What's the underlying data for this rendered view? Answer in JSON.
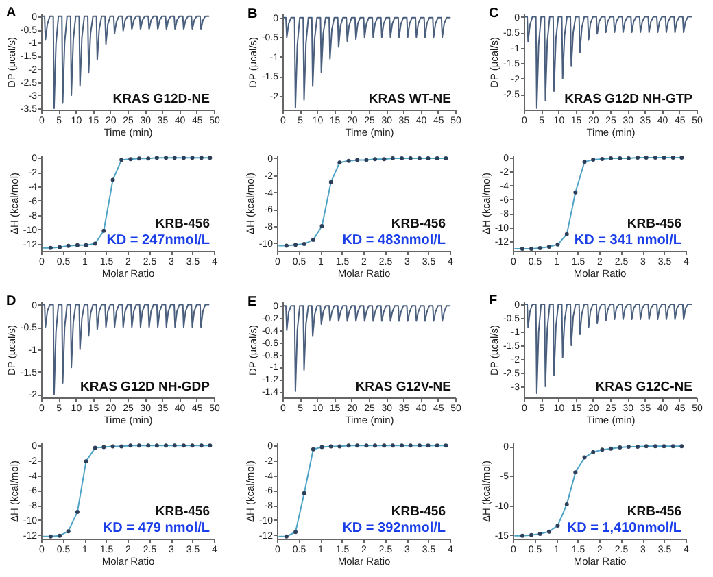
{
  "chart_data": [
    {
      "type": "line",
      "title": "A",
      "xlabel": "Time (min)",
      "ylabel": "DP (µcal/s)",
      "annotations": [
        "KRAS G12D-NE"
      ],
      "x": [
        0.4,
        1,
        1.25,
        1.8,
        2.5,
        3.5,
        3.75,
        4.3,
        5,
        6,
        6.25,
        6.8,
        7.5,
        8.5,
        8.75,
        9.3,
        10,
        11,
        11.25,
        11.8,
        12.5,
        13.5,
        13.75,
        14.3,
        15,
        16,
        16.25,
        16.8,
        17.5,
        18.5,
        18.75,
        19.3,
        20,
        21,
        21.25,
        21.8,
        22.5,
        23.5,
        23.75,
        24.3,
        25,
        26,
        26.25,
        26.8,
        27.5,
        28.5,
        28.75,
        29.3,
        30,
        31,
        31.25,
        31.8,
        32.5,
        33.5,
        33.75,
        34.3,
        35,
        36,
        36.25,
        36.8,
        37.5,
        38.5,
        38.75,
        39.3,
        40,
        41,
        41.25,
        41.8,
        42.5,
        43.5,
        43.75,
        44.3,
        45,
        46,
        46.25,
        46.8,
        47.5,
        48.5
      ],
      "series": [
        {
          "color": "#4a5f7e",
          "values": [
            0,
            0,
            -0.9,
            -0.3,
            0,
            0,
            -3.5,
            -1.05,
            0,
            0,
            -3.3,
            -1,
            0,
            0,
            -3,
            -0.9,
            0,
            0,
            -2.65,
            -0.8,
            0,
            0,
            -2.15,
            -0.65,
            0,
            0,
            -1.65,
            -0.5,
            0,
            0,
            -1.05,
            -0.3,
            0,
            0,
            -0.65,
            -0.2,
            0,
            0,
            -0.55,
            -0.15,
            0,
            0,
            -0.5,
            -0.15,
            0,
            0,
            -0.5,
            -0.15,
            0,
            0,
            -0.5,
            -0.15,
            0,
            0,
            -0.5,
            -0.15,
            0,
            0,
            -0.5,
            -0.15,
            0,
            0,
            -0.5,
            -0.15,
            0,
            0,
            -0.5,
            -0.15,
            0,
            0,
            -0.5,
            -0.15,
            0,
            0,
            -0.5,
            -0.15,
            0,
            0
          ]
        }
      ],
      "xlim": [
        0,
        50
      ],
      "xticks": [
        0,
        5,
        10,
        15,
        20,
        25,
        30,
        35,
        40,
        45,
        50
      ],
      "ylim": [
        -3.55,
        0.1
      ],
      "yticks": [
        0,
        -0.5,
        -1,
        -1.5,
        -2,
        -2.5,
        -3,
        -3.5
      ]
    },
    {
      "type": "line",
      "title": "B",
      "xlabel": "Time (min)",
      "ylabel": "DP (µcal/s)",
      "annotations": [
        "KRAS WT-NE"
      ],
      "x": [
        0.4,
        1,
        1.25,
        1.8,
        2.5,
        3.5,
        3.75,
        4.3,
        5,
        6,
        6.25,
        6.8,
        7.5,
        8.5,
        8.75,
        9.3,
        10,
        11,
        11.25,
        11.8,
        12.5,
        13.5,
        13.75,
        14.3,
        15,
        16,
        16.25,
        16.8,
        17.5,
        18.5,
        18.75,
        19.3,
        20,
        21,
        21.25,
        21.8,
        22.5,
        23.5,
        23.75,
        24.3,
        25,
        26,
        26.25,
        26.8,
        27.5,
        28.5,
        28.75,
        29.3,
        30,
        31,
        31.25,
        31.8,
        32.5,
        33.5,
        33.75,
        34.3,
        35,
        36,
        36.25,
        36.8,
        37.5,
        38.5,
        38.75,
        39.3,
        40,
        41,
        41.25,
        41.8,
        42.5,
        43.5,
        43.75,
        44.3,
        45,
        46,
        46.25,
        46.8,
        47.5,
        48.5
      ],
      "series": [
        {
          "color": "#4a5f7e",
          "values": [
            0,
            0,
            -0.5,
            -0.15,
            0,
            0,
            -2.3,
            -0.7,
            0,
            0,
            -2.1,
            -0.65,
            0,
            0,
            -1.75,
            -0.55,
            0,
            0,
            -1.4,
            -0.4,
            0,
            0,
            -1.05,
            -0.3,
            0,
            0,
            -0.75,
            -0.2,
            0,
            0,
            -0.6,
            -0.2,
            0,
            0,
            -0.55,
            -0.15,
            0,
            0,
            -0.5,
            -0.15,
            0,
            0,
            -0.5,
            -0.15,
            0,
            0,
            -0.5,
            -0.15,
            0,
            0,
            -0.5,
            -0.15,
            0,
            0,
            -0.5,
            -0.15,
            0,
            0,
            -0.5,
            -0.15,
            0,
            0,
            -0.5,
            -0.15,
            0,
            0,
            -0.5,
            -0.15,
            0,
            0,
            -0.5,
            -0.15,
            0,
            0,
            -0.5,
            -0.15,
            0,
            0
          ]
        }
      ],
      "xlim": [
        0,
        50
      ],
      "xticks": [
        0,
        5,
        10,
        15,
        20,
        25,
        30,
        35,
        40,
        45,
        50
      ],
      "ylim": [
        -2.35,
        0.1
      ],
      "yticks": [
        0,
        -0.5,
        -1,
        -1.5,
        -2
      ]
    },
    {
      "type": "line",
      "title": "C",
      "xlabel": "Time (min)",
      "ylabel": "DP (µcal/s)",
      "annotations": [
        "KRAS G12D NH-GTP"
      ],
      "x": [
        0.4,
        1,
        1.25,
        1.8,
        2.5,
        3.5,
        3.75,
        4.3,
        5,
        6,
        6.25,
        6.8,
        7.5,
        8.5,
        8.75,
        9.3,
        10,
        11,
        11.25,
        11.8,
        12.5,
        13.5,
        13.75,
        14.3,
        15,
        16,
        16.25,
        16.8,
        17.5,
        18.5,
        18.75,
        19.3,
        20,
        21,
        21.25,
        21.8,
        22.5,
        23.5,
        23.75,
        24.3,
        25,
        26,
        26.25,
        26.8,
        27.5,
        28.5,
        28.75,
        29.3,
        30,
        31,
        31.25,
        31.8,
        32.5,
        33.5,
        33.75,
        34.3,
        35,
        36,
        36.25,
        36.8,
        37.5,
        38.5,
        38.75,
        39.3,
        40,
        41,
        41.25,
        41.8,
        42.5,
        43.5,
        43.75,
        44.3,
        45,
        46,
        46.25,
        46.8,
        47.5,
        48.5
      ],
      "series": [
        {
          "color": "#4a5f7e",
          "values": [
            0,
            0,
            -0.8,
            -0.25,
            0,
            0,
            -2.95,
            -0.9,
            0,
            0,
            -2.7,
            -0.8,
            0,
            0,
            -2.4,
            -0.7,
            0,
            0,
            -2,
            -0.6,
            0,
            0,
            -1.6,
            -0.5,
            0,
            0,
            -1.15,
            -0.35,
            0,
            0,
            -0.75,
            -0.2,
            0,
            0,
            -0.55,
            -0.15,
            0,
            0,
            -0.5,
            -0.15,
            0,
            0,
            -0.5,
            -0.15,
            0,
            0,
            -0.5,
            -0.15,
            0,
            0,
            -0.5,
            -0.15,
            0,
            0,
            -0.5,
            -0.15,
            0,
            0,
            -0.5,
            -0.15,
            0,
            0,
            -0.5,
            -0.15,
            0,
            0,
            -0.5,
            -0.15,
            0,
            0,
            -0.5,
            -0.15,
            0,
            0,
            -0.5,
            -0.15,
            0,
            0
          ]
        }
      ],
      "xlim": [
        0,
        50
      ],
      "xticks": [
        0,
        5,
        10,
        15,
        20,
        25,
        30,
        35,
        40,
        45,
        50
      ],
      "ylim": [
        -3,
        0.1
      ],
      "yticks": [
        0,
        -0.5,
        -1,
        -1.5,
        -2,
        -2.5
      ]
    },
    {
      "type": "line",
      "xlabel": "Molar Ratio",
      "ylabel": "ΔH (kcal/mol)",
      "annotations": [
        "KRB-456",
        "KD = 247nmol/L"
      ],
      "series": [
        {
          "color": "#4fa3c7",
          "x": [
            0.05,
            0.22,
            0.43,
            0.63,
            0.84,
            1.04,
            1.25,
            1.45,
            1.66,
            1.86,
            2.07,
            2.27,
            2.48,
            2.68,
            2.89,
            3.09,
            3.3,
            3.5,
            3.71,
            3.91
          ],
          "values": [
            -12.6,
            -12.6,
            -12.5,
            -12.3,
            -12.2,
            -12.2,
            -12,
            -10.2,
            -3.1,
            -0.3,
            -0.2,
            -0.1,
            -0.1,
            0,
            0,
            0,
            0,
            0,
            0,
            0
          ]
        },
        {
          "type": "scatter",
          "color": "#2c3e58",
          "x": [
            0.22,
            0.43,
            0.63,
            0.84,
            1.04,
            1.25,
            1.45,
            1.66,
            1.86,
            2.07,
            2.27,
            2.48,
            2.68,
            2.89,
            3.09,
            3.3,
            3.5,
            3.71,
            3.91
          ],
          "values": [
            -12.6,
            -12.5,
            -12.3,
            -12.2,
            -12.2,
            -12,
            -10.2,
            -3.1,
            -0.3,
            -0.2,
            -0.1,
            -0.1,
            0,
            0,
            0,
            0,
            0,
            0,
            0
          ]
        }
      ],
      "xlim": [
        0,
        4
      ],
      "xticks": [
        0,
        0.5,
        1,
        1.5,
        2,
        2.5,
        3,
        3.5,
        4
      ],
      "ylim": [
        -13,
        0.4
      ],
      "yticks": [
        0,
        -2,
        -4,
        -6,
        -8,
        -10,
        -12
      ]
    },
    {
      "type": "line",
      "xlabel": "Molar Ratio",
      "ylabel": "ΔH (kcal/mol)",
      "annotations": [
        "KRB-456",
        "KD = 483nmol/L"
      ],
      "series": [
        {
          "color": "#4fa3c7",
          "x": [
            0.05,
            0.22,
            0.43,
            0.63,
            0.84,
            1.04,
            1.25,
            1.45,
            1.66,
            1.86,
            2.07,
            2.27,
            2.48,
            2.68,
            2.89,
            3.09,
            3.3,
            3.5,
            3.71,
            3.91
          ],
          "values": [
            -10.3,
            -10.3,
            -10.2,
            -10.1,
            -9.6,
            -8,
            -2.8,
            -0.5,
            -0.3,
            -0.2,
            -0.2,
            -0.1,
            -0.1,
            0,
            0,
            0,
            0,
            0,
            0,
            0
          ]
        },
        {
          "type": "scatter",
          "color": "#2c3e58",
          "x": [
            0.22,
            0.43,
            0.63,
            0.84,
            1.04,
            1.25,
            1.45,
            1.66,
            1.86,
            2.07,
            2.27,
            2.48,
            2.68,
            2.89,
            3.09,
            3.3,
            3.5,
            3.71,
            3.91
          ],
          "values": [
            -10.3,
            -10.2,
            -10.1,
            -9.6,
            -8,
            -2.8,
            -0.5,
            -0.3,
            -0.2,
            -0.2,
            -0.1,
            -0.1,
            0,
            0,
            0,
            0,
            0,
            0,
            0
          ]
        }
      ],
      "xlim": [
        0,
        4
      ],
      "xticks": [
        0,
        0.5,
        1,
        1.5,
        2,
        2.5,
        3,
        3.5,
        4
      ],
      "ylim": [
        -10.9,
        0.4
      ],
      "yticks": [
        0,
        -2,
        -4,
        -6,
        -8,
        -10
      ]
    },
    {
      "type": "line",
      "xlabel": "Molar Ratio",
      "ylabel": "ΔH (kcal/mol)",
      "annotations": [
        "KRB-456",
        "KD = 341 nmol/L"
      ],
      "series": [
        {
          "color": "#4fa3c7",
          "x": [
            0.05,
            0.22,
            0.43,
            0.63,
            0.84,
            1.04,
            1.25,
            1.45,
            1.66,
            1.86,
            2.07,
            2.27,
            2.48,
            2.68,
            2.89,
            3.09,
            3.3,
            3.5,
            3.71,
            3.91
          ],
          "values": [
            -13.1,
            -13.1,
            -13.1,
            -13,
            -12.8,
            -12.5,
            -11,
            -5,
            -0.6,
            -0.3,
            -0.2,
            -0.1,
            -0.1,
            -0.1,
            0,
            0,
            0,
            0,
            0,
            0
          ]
        },
        {
          "type": "scatter",
          "color": "#2c3e58",
          "x": [
            0.22,
            0.43,
            0.63,
            0.84,
            1.04,
            1.25,
            1.45,
            1.66,
            1.86,
            2.07,
            2.27,
            2.48,
            2.68,
            2.89,
            3.09,
            3.3,
            3.5,
            3.71,
            3.91
          ],
          "values": [
            -13.1,
            -13.1,
            -13,
            -12.8,
            -12.5,
            -11,
            -5,
            -0.6,
            -0.3,
            -0.2,
            -0.1,
            -0.1,
            -0.1,
            0,
            0,
            0,
            0,
            0,
            0
          ]
        }
      ],
      "xlim": [
        0,
        4
      ],
      "xticks": [
        0,
        0.5,
        1,
        1.5,
        2,
        2.5,
        3,
        3.5,
        4
      ],
      "ylim": [
        -13.4,
        0.4
      ],
      "yticks": [
        0,
        -2,
        -4,
        -6,
        -8,
        -10,
        -12
      ]
    },
    {
      "type": "line",
      "title": "D",
      "xlabel": "Time (min)",
      "ylabel": "DP (µcal/s)",
      "annotations": [
        "KRAS G12D NH-GDP"
      ],
      "x": [
        0.4,
        1,
        1.25,
        1.8,
        2.5,
        3.5,
        3.75,
        4.3,
        5,
        6,
        6.25,
        6.8,
        7.5,
        8.5,
        8.75,
        9.3,
        10,
        11,
        11.25,
        11.8,
        12.5,
        13.5,
        13.75,
        14.3,
        15,
        16,
        16.25,
        16.8,
        17.5,
        18.5,
        18.75,
        19.3,
        20,
        21,
        21.25,
        21.8,
        22.5,
        23.5,
        23.75,
        24.3,
        25,
        26,
        26.25,
        26.8,
        27.5,
        28.5,
        28.75,
        29.3,
        30,
        31,
        31.25,
        31.8,
        32.5,
        33.5,
        33.75,
        34.3,
        35,
        36,
        36.25,
        36.8,
        37.5,
        38.5,
        38.75,
        39.3,
        40,
        41,
        41.25,
        41.8,
        42.5,
        43.5,
        43.75,
        44.3,
        45,
        46,
        46.25,
        46.8,
        47.5,
        48.5
      ],
      "series": [
        {
          "color": "#4a5f7e",
          "values": [
            0,
            0,
            -0.5,
            -0.15,
            0,
            0,
            -2,
            -0.6,
            0,
            0,
            -1.75,
            -0.5,
            0,
            0,
            -1.4,
            -0.4,
            0,
            0,
            -1,
            -0.3,
            0,
            0,
            -0.7,
            -0.2,
            0,
            0,
            -0.55,
            -0.15,
            0,
            0,
            -0.5,
            -0.15,
            0,
            0,
            -0.5,
            -0.15,
            0,
            0,
            -0.5,
            -0.15,
            0,
            0,
            -0.5,
            -0.15,
            0,
            0,
            -0.5,
            -0.15,
            0,
            0,
            -0.5,
            -0.15,
            0,
            0,
            -0.5,
            -0.15,
            0,
            0,
            -0.5,
            -0.15,
            0,
            0,
            -0.5,
            -0.15,
            0,
            0,
            -0.5,
            -0.15,
            0,
            0,
            -0.5,
            -0.15,
            0,
            0,
            -0.5,
            -0.15,
            0,
            0
          ]
        }
      ],
      "xlim": [
        0,
        50
      ],
      "xticks": [
        0,
        5,
        10,
        15,
        20,
        25,
        30,
        35,
        40,
        45,
        50
      ],
      "ylim": [
        -2.07,
        0.07
      ],
      "yticks": [
        0,
        -0.5,
        -1,
        -1.5,
        -2
      ]
    },
    {
      "type": "line",
      "title": "E",
      "xlabel": "Time (min)",
      "ylabel": "DP (µcal/s)",
      "annotations": [
        "KRAS G12V-NE"
      ],
      "x": [
        0.4,
        1,
        1.25,
        1.8,
        2.5,
        3.5,
        3.75,
        4.3,
        5,
        6,
        6.25,
        6.8,
        7.5,
        8.5,
        8.75,
        9.3,
        10,
        11,
        11.25,
        11.8,
        12.5,
        13.5,
        13.75,
        14.3,
        15,
        16,
        16.25,
        16.8,
        17.5,
        18.5,
        18.75,
        19.3,
        20,
        21,
        21.25,
        21.8,
        22.5,
        23.5,
        23.75,
        24.3,
        25,
        26,
        26.25,
        26.8,
        27.5,
        28.5,
        28.75,
        29.3,
        30,
        31,
        31.25,
        31.8,
        32.5,
        33.5,
        33.75,
        34.3,
        35,
        36,
        36.25,
        36.8,
        37.5,
        38.5,
        38.75,
        39.3,
        40,
        41,
        41.25,
        41.8,
        42.5,
        43.5,
        43.75,
        44.3,
        45,
        46,
        46.25,
        46.8,
        47.5,
        48.5
      ],
      "series": [
        {
          "color": "#4a5f7e",
          "values": [
            0,
            0,
            -0.4,
            -0.1,
            0,
            0,
            -1.4,
            -0.4,
            0,
            0,
            -1.05,
            -0.3,
            0,
            0,
            -0.5,
            -0.15,
            0,
            0,
            -0.3,
            -0.1,
            0,
            0,
            -0.25,
            -0.1,
            0,
            0,
            -0.25,
            -0.1,
            0,
            0,
            -0.25,
            -0.1,
            0,
            0,
            -0.25,
            -0.1,
            0,
            0,
            -0.25,
            -0.1,
            0,
            0,
            -0.25,
            -0.1,
            0,
            0,
            -0.25,
            -0.1,
            0,
            0,
            -0.25,
            -0.1,
            0,
            0,
            -0.25,
            -0.1,
            0,
            0,
            -0.25,
            -0.1,
            0,
            0,
            -0.25,
            -0.1,
            0,
            0,
            -0.25,
            -0.1,
            0,
            0,
            -0.25,
            -0.1,
            0,
            0,
            -0.25,
            -0.1,
            0,
            0
          ]
        }
      ],
      "xlim": [
        0,
        50
      ],
      "xticks": [
        0,
        5,
        10,
        15,
        20,
        25,
        30,
        35,
        40,
        45,
        50
      ],
      "ylim": [
        -1.5,
        0.07
      ],
      "yticks": [
        0,
        -0.2,
        -0.4,
        -0.6,
        -0.8,
        -1,
        -1.2,
        -1.4
      ]
    },
    {
      "type": "line",
      "title": "F",
      "xlabel": "Time (min)",
      "ylabel": "DP (µcal/s)",
      "annotations": [
        "KRAS G12C-NE"
      ],
      "x": [
        0.4,
        1,
        1.25,
        1.8,
        2.5,
        3.5,
        3.75,
        4.3,
        5,
        6,
        6.25,
        6.8,
        7.5,
        8.5,
        8.75,
        9.3,
        10,
        11,
        11.25,
        11.8,
        12.5,
        13.5,
        13.75,
        14.3,
        15,
        16,
        16.25,
        16.8,
        17.5,
        18.5,
        18.75,
        19.3,
        20,
        21,
        21.25,
        21.8,
        22.5,
        23.5,
        23.75,
        24.3,
        25,
        26,
        26.25,
        26.8,
        27.5,
        28.5,
        28.75,
        29.3,
        30,
        31,
        31.25,
        31.8,
        32.5,
        33.5,
        33.75,
        34.3,
        35,
        36,
        36.25,
        36.8,
        37.5,
        38.5,
        38.75,
        39.3,
        40,
        41,
        41.25,
        41.8,
        42.5,
        43.5,
        43.75,
        44.3,
        45,
        46,
        46.25,
        46.8,
        47.5,
        48.5
      ],
      "series": [
        {
          "color": "#4a5f7e",
          "values": [
            0,
            0,
            -0.85,
            -0.25,
            0,
            0,
            -3.25,
            -1,
            0,
            0,
            -3,
            -0.9,
            0,
            0,
            -2.6,
            -0.8,
            0,
            0,
            -1.95,
            -0.6,
            0,
            0,
            -1.5,
            -0.45,
            0,
            0,
            -1.1,
            -0.35,
            0,
            0,
            -0.85,
            -0.25,
            0,
            0,
            -0.7,
            -0.2,
            0,
            0,
            -0.6,
            -0.2,
            0,
            0,
            -0.55,
            -0.15,
            0,
            0,
            -0.55,
            -0.15,
            0,
            0,
            -0.55,
            -0.15,
            0,
            0,
            -0.55,
            -0.15,
            0,
            0,
            -0.55,
            -0.15,
            0,
            0,
            -0.55,
            -0.15,
            0,
            0,
            -0.55,
            -0.15,
            0,
            0,
            -0.55,
            -0.15,
            0,
            0,
            -0.55,
            -0.15,
            0,
            0
          ]
        }
      ],
      "xlim": [
        0,
        50
      ],
      "xticks": [
        0,
        5,
        10,
        15,
        20,
        25,
        30,
        35,
        40,
        45,
        50
      ],
      "ylim": [
        -3.4,
        0.1
      ],
      "yticks": [
        0,
        -0.5,
        -1,
        -1.5,
        -2,
        -2.5,
        -3
      ]
    },
    {
      "type": "line",
      "xlabel": "Molar Ratio",
      "ylabel": "ΔH (kcal/mol)",
      "annotations": [
        "KRB-456",
        "KD = 479 nmol/L"
      ],
      "series": [
        {
          "color": "#4fa3c7",
          "x": [
            0.05,
            0.22,
            0.43,
            0.63,
            0.84,
            1.04,
            1.25,
            1.45,
            1.66,
            1.86,
            2.07,
            2.27,
            2.48,
            2.68,
            2.89,
            3.09,
            3.3,
            3.5,
            3.71,
            3.91
          ],
          "values": [
            -12.2,
            -12.2,
            -12.1,
            -11.5,
            -8.9,
            -2.1,
            -0.3,
            -0.2,
            -0.1,
            -0.1,
            0,
            0,
            0,
            0,
            0,
            0,
            0,
            0,
            0,
            0
          ]
        },
        {
          "type": "scatter",
          "color": "#2c3e58",
          "x": [
            0.22,
            0.43,
            0.63,
            0.84,
            1.04,
            1.25,
            1.45,
            1.66,
            1.86,
            2.07,
            2.27,
            2.48,
            2.68,
            2.89,
            3.09,
            3.3,
            3.5,
            3.71,
            3.91
          ],
          "values": [
            -12.2,
            -12.1,
            -11.5,
            -8.9,
            -2.1,
            -0.3,
            -0.2,
            -0.1,
            -0.1,
            0,
            0,
            0,
            0,
            0,
            0,
            0,
            0,
            0,
            0
          ]
        }
      ],
      "xlim": [
        0,
        4
      ],
      "xticks": [
        0,
        0.5,
        1,
        1.5,
        2,
        2.5,
        3,
        3.5,
        4
      ],
      "ylim": [
        -12.5,
        0.4
      ],
      "yticks": [
        0,
        -2,
        -4,
        -6,
        -8,
        -10,
        -12
      ]
    },
    {
      "type": "line",
      "xlabel": "Molar Ratio",
      "ylabel": "ΔH (kcal/mol)",
      "annotations": [
        "KRB-456",
        "KD = 392nmol/L"
      ],
      "series": [
        {
          "color": "#4fa3c7",
          "x": [
            0.05,
            0.22,
            0.43,
            0.63,
            0.84,
            1.04,
            1.25,
            1.45,
            1.66,
            1.86,
            2.07,
            2.27,
            2.48,
            2.68,
            2.89,
            3.09,
            3.3,
            3.5,
            3.71,
            3.91
          ],
          "values": [
            -12.2,
            -12.2,
            -11.6,
            -6.4,
            -0.5,
            -0.2,
            -0.1,
            -0.1,
            0,
            0,
            0,
            0,
            0,
            0,
            0,
            0,
            0,
            0,
            0,
            0
          ]
        },
        {
          "type": "scatter",
          "color": "#2c3e58",
          "x": [
            0.22,
            0.43,
            0.63,
            0.84,
            1.04,
            1.25,
            1.45,
            1.66,
            1.86,
            2.07,
            2.27,
            2.48,
            2.68,
            2.89,
            3.09,
            3.3,
            3.5,
            3.71,
            3.91
          ],
          "values": [
            -12.2,
            -11.6,
            -6.4,
            -0.5,
            -0.2,
            -0.1,
            -0.1,
            0,
            0,
            0,
            0,
            0,
            0,
            0,
            0,
            0,
            0,
            0,
            0
          ]
        }
      ],
      "xlim": [
        0,
        4
      ],
      "xticks": [
        0,
        0.5,
        1,
        1.5,
        2,
        2.5,
        3,
        3.5,
        4
      ],
      "ylim": [
        -12.5,
        0.4
      ],
      "yticks": [
        0,
        -2,
        -4,
        -6,
        -8,
        -10,
        -12
      ]
    },
    {
      "type": "line",
      "xlabel": "Molar Ratio",
      "ylabel": "ΔH (kcal/mol)",
      "annotations": [
        "KRB-456",
        "KD = 1,410nmol/L"
      ],
      "series": [
        {
          "color": "#4fa3c7",
          "x": [
            0.05,
            0.22,
            0.43,
            0.63,
            0.84,
            1.04,
            1.25,
            1.45,
            1.66,
            1.86,
            2.07,
            2.27,
            2.48,
            2.68,
            2.89,
            3.09,
            3.3,
            3.5,
            3.71,
            3.91
          ],
          "values": [
            -15.1,
            -15.1,
            -15,
            -14.8,
            -14.4,
            -13.4,
            -9.8,
            -4.4,
            -1.9,
            -1,
            -0.6,
            -0.4,
            -0.2,
            -0.1,
            -0.1,
            0,
            0,
            0,
            0,
            0
          ]
        },
        {
          "type": "scatter",
          "color": "#2c3e58",
          "x": [
            0.22,
            0.43,
            0.63,
            0.84,
            1.04,
            1.25,
            1.45,
            1.66,
            1.86,
            2.07,
            2.27,
            2.48,
            2.68,
            2.89,
            3.09,
            3.3,
            3.5,
            3.71,
            3.91
          ],
          "values": [
            -15.1,
            -15,
            -14.8,
            -14.4,
            -13.4,
            -9.8,
            -4.4,
            -1.9,
            -1,
            -0.6,
            -0.4,
            -0.2,
            -0.1,
            -0.1,
            0,
            0,
            0,
            0,
            0
          ]
        }
      ],
      "xlim": [
        0,
        4
      ],
      "xticks": [
        0,
        0.5,
        1,
        1.5,
        2,
        2.5,
        3,
        3.5,
        4
      ],
      "ylim": [
        -15.6,
        0.6
      ],
      "yticks": [
        0,
        -5,
        -10,
        -15
      ]
    }
  ]
}
